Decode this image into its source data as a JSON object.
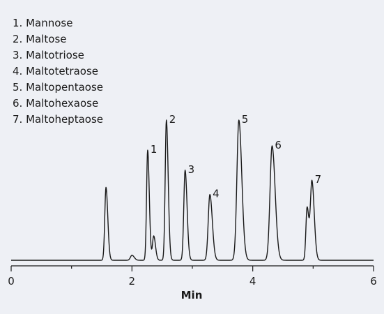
{
  "chart_data": {
    "type": "line",
    "title": "",
    "xlabel": "Min",
    "ylabel": "",
    "xlim": [
      0,
      6
    ],
    "ylim": [
      0,
      100
    ],
    "x_ticks": [
      0,
      2,
      4,
      6
    ],
    "x_minor_ticks": [
      1,
      3,
      5
    ],
    "grid": false,
    "legend_position": "top-left",
    "legend": [
      "1. Mannose",
      "2. Maltose",
      "3. Maltotriose",
      "4. Maltotetraose",
      "5. Maltopentaose",
      "6. Maltohexaose",
      "7. Maltoheptaose"
    ],
    "peaks": [
      {
        "x": 1.57,
        "y": 51,
        "width": 0.022,
        "label": ""
      },
      {
        "x": 2.0,
        "y": 3.5,
        "width": 0.028,
        "label": ""
      },
      {
        "x": 2.26,
        "y": 77,
        "width": 0.02,
        "label": "1"
      },
      {
        "x": 2.36,
        "y": 17,
        "width": 0.022,
        "label": ""
      },
      {
        "x": 2.57,
        "y": 98,
        "width": 0.022,
        "label": "2"
      },
      {
        "x": 2.88,
        "y": 63,
        "width": 0.024,
        "label": "3"
      },
      {
        "x": 3.29,
        "y": 46,
        "width": 0.03,
        "label": "4"
      },
      {
        "x": 3.77,
        "y": 98,
        "width": 0.036,
        "label": "5"
      },
      {
        "x": 4.32,
        "y": 80,
        "width": 0.038,
        "label": "6"
      },
      {
        "x": 4.9,
        "y": 37,
        "width": 0.022,
        "label": ""
      },
      {
        "x": 4.98,
        "y": 55,
        "width": 0.028,
        "label": "7"
      }
    ],
    "colors": {
      "line": "#1a1a1a",
      "background": "#eef0f5"
    }
  }
}
